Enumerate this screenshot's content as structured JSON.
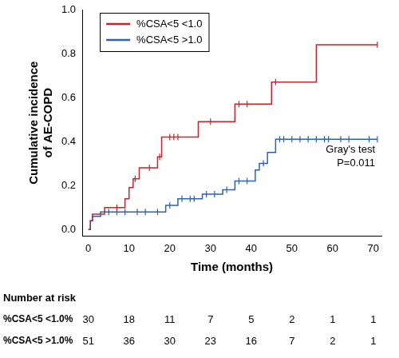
{
  "chart_data": {
    "type": "line",
    "x_label": "Time (months)",
    "y_label": [
      "Cumulative incidence",
      "of AE-COPD"
    ],
    "xlim": [
      -1.5,
      72
    ],
    "xticks": [
      0,
      10,
      20,
      30,
      40,
      50,
      60,
      70
    ],
    "ylim": [
      -0.03,
      1.0
    ],
    "yticks": [
      {
        "value": 0,
        "label": "0.0"
      },
      0.2,
      0.4,
      0.6,
      0.8,
      {
        "value": 1,
        "label": "1.0"
      }
    ],
    "grid": false,
    "legend": "upper left",
    "annotation": [
      "Gray's test",
      "P=0.011"
    ],
    "series": [
      {
        "name": "%CSA<5 <1.0",
        "color": "#c1272d",
        "line_style": "step",
        "marker": "line",
        "x": [
          0,
          0.5,
          1,
          4,
          9,
          10,
          11,
          12.5,
          17,
          18,
          27,
          36,
          45,
          56,
          71
        ],
        "values": [
          0,
          0.04,
          0.07,
          0.1,
          0.14,
          0.19,
          0.23,
          0.28,
          0.33,
          0.42,
          0.49,
          0.57,
          0.67,
          0.84,
          0.84
        ],
        "censor_x": [
          7,
          11.5,
          15,
          17.5,
          20,
          21,
          22,
          30,
          37,
          39,
          46,
          71
        ],
        "censor_values": [
          0.1,
          0.23,
          0.28,
          0.33,
          0.42,
          0.42,
          0.42,
          0.49,
          0.57,
          0.57,
          0.67,
          0.84
        ]
      },
      {
        "name": "%CSA<5 >1.0",
        "color": "#2b63b0",
        "line_style": "step",
        "marker": "line",
        "x": [
          0,
          0.5,
          1,
          3,
          19,
          22,
          28,
          33,
          36,
          41,
          42,
          44,
          46,
          71
        ],
        "values": [
          0,
          0.04,
          0.06,
          0.08,
          0.11,
          0.14,
          0.16,
          0.18,
          0.22,
          0.27,
          0.3,
          0.35,
          0.41,
          0.41
        ],
        "censor_x": [
          5,
          7,
          9,
          12,
          14,
          17,
          20,
          23,
          25,
          26,
          29,
          31,
          34,
          37,
          39,
          43,
          47,
          48,
          50,
          52,
          54,
          56,
          58,
          59,
          62,
          64,
          69,
          71
        ],
        "censor_values": [
          0.08,
          0.08,
          0.08,
          0.08,
          0.08,
          0.08,
          0.11,
          0.14,
          0.14,
          0.14,
          0.16,
          0.16,
          0.18,
          0.22,
          0.22,
          0.3,
          0.41,
          0.41,
          0.41,
          0.41,
          0.41,
          0.41,
          0.41,
          0.41,
          0.41,
          0.41,
          0.41,
          0.41
        ]
      }
    ],
    "number_at_risk": {
      "title": "Number at risk",
      "x": [
        0,
        10,
        20,
        30,
        40,
        50,
        60,
        70
      ],
      "rows": [
        {
          "label": "%CSA<5 <1.0%",
          "values": [
            30,
            18,
            11,
            7,
            5,
            2,
            1,
            1
          ]
        },
        {
          "label": "%CSA<5 >1.0%",
          "values": [
            51,
            36,
            30,
            23,
            16,
            7,
            2,
            1
          ]
        }
      ]
    }
  }
}
